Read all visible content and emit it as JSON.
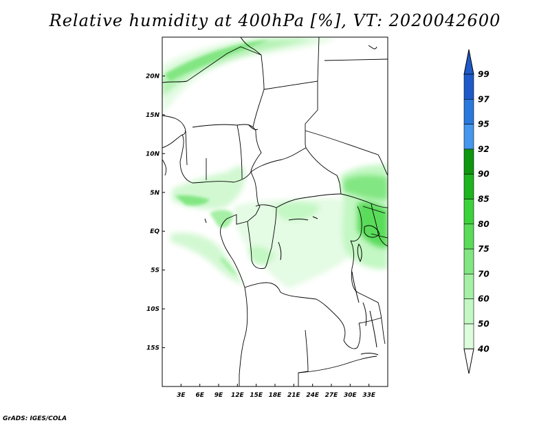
{
  "title": "Relative humidity at 400hPa [%], VT: 2020042600",
  "credit": "GrADS: IGES/COLA",
  "map": {
    "lon_range": [
      0,
      36
    ],
    "lat_range": [
      -20,
      25
    ],
    "lon_ticks": [
      {
        "value": 3,
        "label": "3E"
      },
      {
        "value": 6,
        "label": "6E"
      },
      {
        "value": 9,
        "label": "9E"
      },
      {
        "value": 12,
        "label": "12E"
      },
      {
        "value": 15,
        "label": "15E"
      },
      {
        "value": 18,
        "label": "18E"
      },
      {
        "value": 21,
        "label": "21E"
      },
      {
        "value": 24,
        "label": "24E"
      },
      {
        "value": 27,
        "label": "27E"
      },
      {
        "value": 30,
        "label": "30E"
      },
      {
        "value": 33,
        "label": "33E"
      }
    ],
    "lat_ticks": [
      {
        "value": 20,
        "label": "20N"
      },
      {
        "value": 15,
        "label": "15N"
      },
      {
        "value": 10,
        "label": "10N"
      },
      {
        "value": 5,
        "label": "5N"
      },
      {
        "value": 0,
        "label": "EQ"
      },
      {
        "value": -5,
        "label": "5S"
      },
      {
        "value": -10,
        "label": "10S"
      },
      {
        "value": -15,
        "label": "15S"
      }
    ]
  },
  "colorbar": {
    "levels": [
      "40",
      "50",
      "60",
      "70",
      "75",
      "80",
      "85",
      "90",
      "92",
      "95",
      "97",
      "99"
    ],
    "colors": [
      "#f0fff0",
      "#dcfcdc",
      "#c3f7c3",
      "#a5f0a5",
      "#82e682",
      "#5adc5a",
      "#3cd23c",
      "#1eb41e",
      "#0f960f",
      "#4696ee",
      "#2a78dc",
      "#1e5ac8"
    ],
    "below_color": "#ffffff",
    "above_color": "#1e5ac8"
  },
  "colors": {
    "humid_light": "#e4fbe4",
    "humid_mid": "#b4f2b4",
    "humid_strong": "#7fe07f",
    "border": "#000000"
  }
}
